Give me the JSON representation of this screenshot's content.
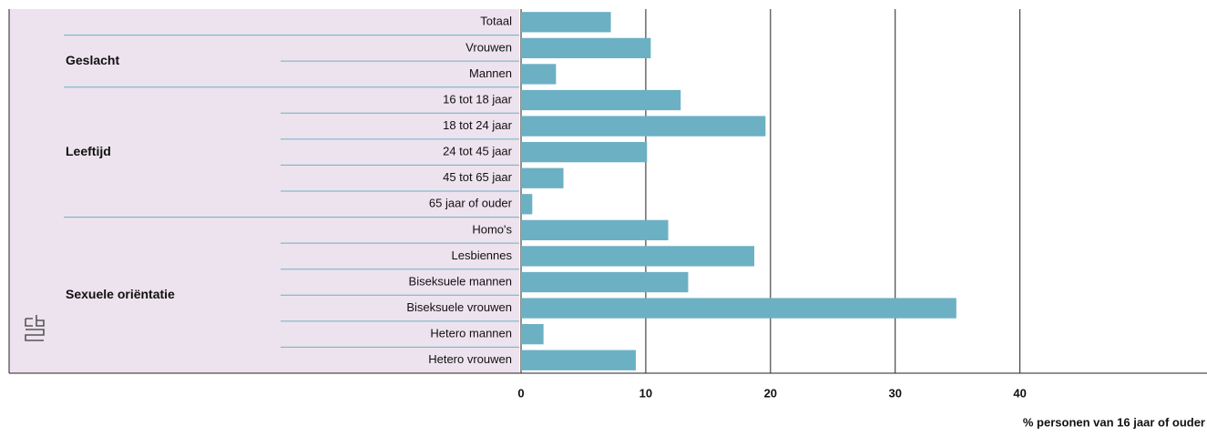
{
  "chart_data": {
    "type": "barh",
    "categories": [
      "Totaal",
      "Vrouwen",
      "Mannen",
      "16 tot 18 jaar",
      "18 tot 24 jaar",
      "24  tot 45 jaar",
      "45 tot 65 jaar",
      "65 jaar of ouder",
      "Homo's",
      "Lesbiennes",
      "Biseksuele mannen",
      "Biseksuele vrouwen",
      "Hetero mannen",
      "Hetero vrouwen"
    ],
    "category_groups": [
      null,
      "Geslacht",
      "Geslacht",
      "Leeftijd",
      "Leeftijd",
      "Leeftijd",
      "Leeftijd",
      "Leeftijd",
      "Sexuele oriëntatie",
      "Sexuele oriëntatie",
      "Sexuele oriëntatie",
      "Sexuele oriëntatie",
      "Sexuele oriëntatie",
      "Sexuele oriëntatie"
    ],
    "values": [
      7.2,
      10.4,
      2.8,
      12.8,
      19.6,
      10.1,
      3.4,
      0.9,
      11.8,
      18.7,
      13.4,
      34.9,
      1.8,
      9.2
    ],
    "color": "#6cb0c4",
    "xlim": [
      0,
      55
    ],
    "xticks": [
      0,
      10,
      20,
      30,
      40
    ],
    "xlabel": "% personen van 16 jaar of ouder",
    "grid": true
  }
}
